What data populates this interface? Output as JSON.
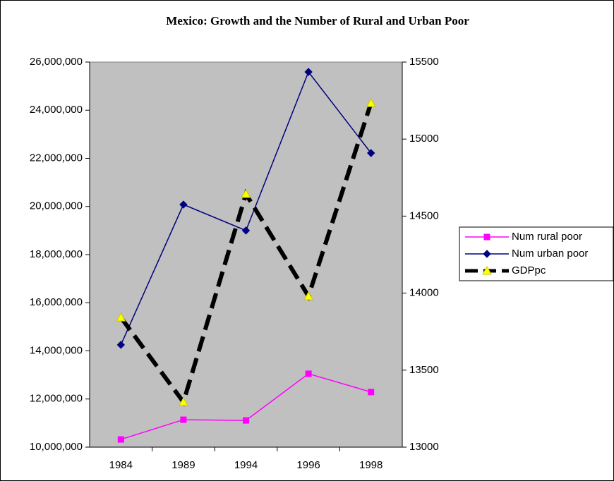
{
  "chart_data": {
    "type": "line",
    "title": "Mexico: Growth and the Number of Rural and Urban Poor",
    "categories": [
      "1984",
      "1989",
      "1994",
      "1996",
      "1998"
    ],
    "series": [
      {
        "name": "Num rural poor",
        "color": "#ff00ff",
        "marker": "square",
        "axis": "y",
        "values": [
          10320000,
          11140000,
          11110000,
          13050000,
          12290000
        ]
      },
      {
        "name": "Num urban poor",
        "color": "#000080",
        "marker": "diamond",
        "axis": "y",
        "values": [
          14250000,
          20080000,
          19000000,
          25590000,
          22220000
        ]
      },
      {
        "name": "GDPpc",
        "color": "#000000",
        "marker": "triangle",
        "marker_color": "#ffff00",
        "dashed": true,
        "axis": "y2",
        "values": [
          13842,
          13293,
          14644,
          13980,
          15234
        ]
      }
    ],
    "ylim": [
      10000000,
      26000000
    ],
    "yticks": [
      {
        "value": 10000000,
        "label": "10,000,000"
      },
      {
        "value": 12000000,
        "label": "12,000,000"
      },
      {
        "value": 14000000,
        "label": "14,000,000"
      },
      {
        "value": 16000000,
        "label": "16,000,000"
      },
      {
        "value": 18000000,
        "label": "18,000,000"
      },
      {
        "value": 20000000,
        "label": "20,000,000"
      },
      {
        "value": 22000000,
        "label": "22,000,000"
      },
      {
        "value": 24000000,
        "label": "24,000,000"
      },
      {
        "value": 26000000,
        "label": "26,000,000"
      }
    ],
    "y2lim": [
      13000,
      15500
    ],
    "y2ticks": [
      13000,
      13500,
      14000,
      14500,
      15000,
      15500
    ],
    "plot_background": "#c0c0c0",
    "legend": "right"
  }
}
